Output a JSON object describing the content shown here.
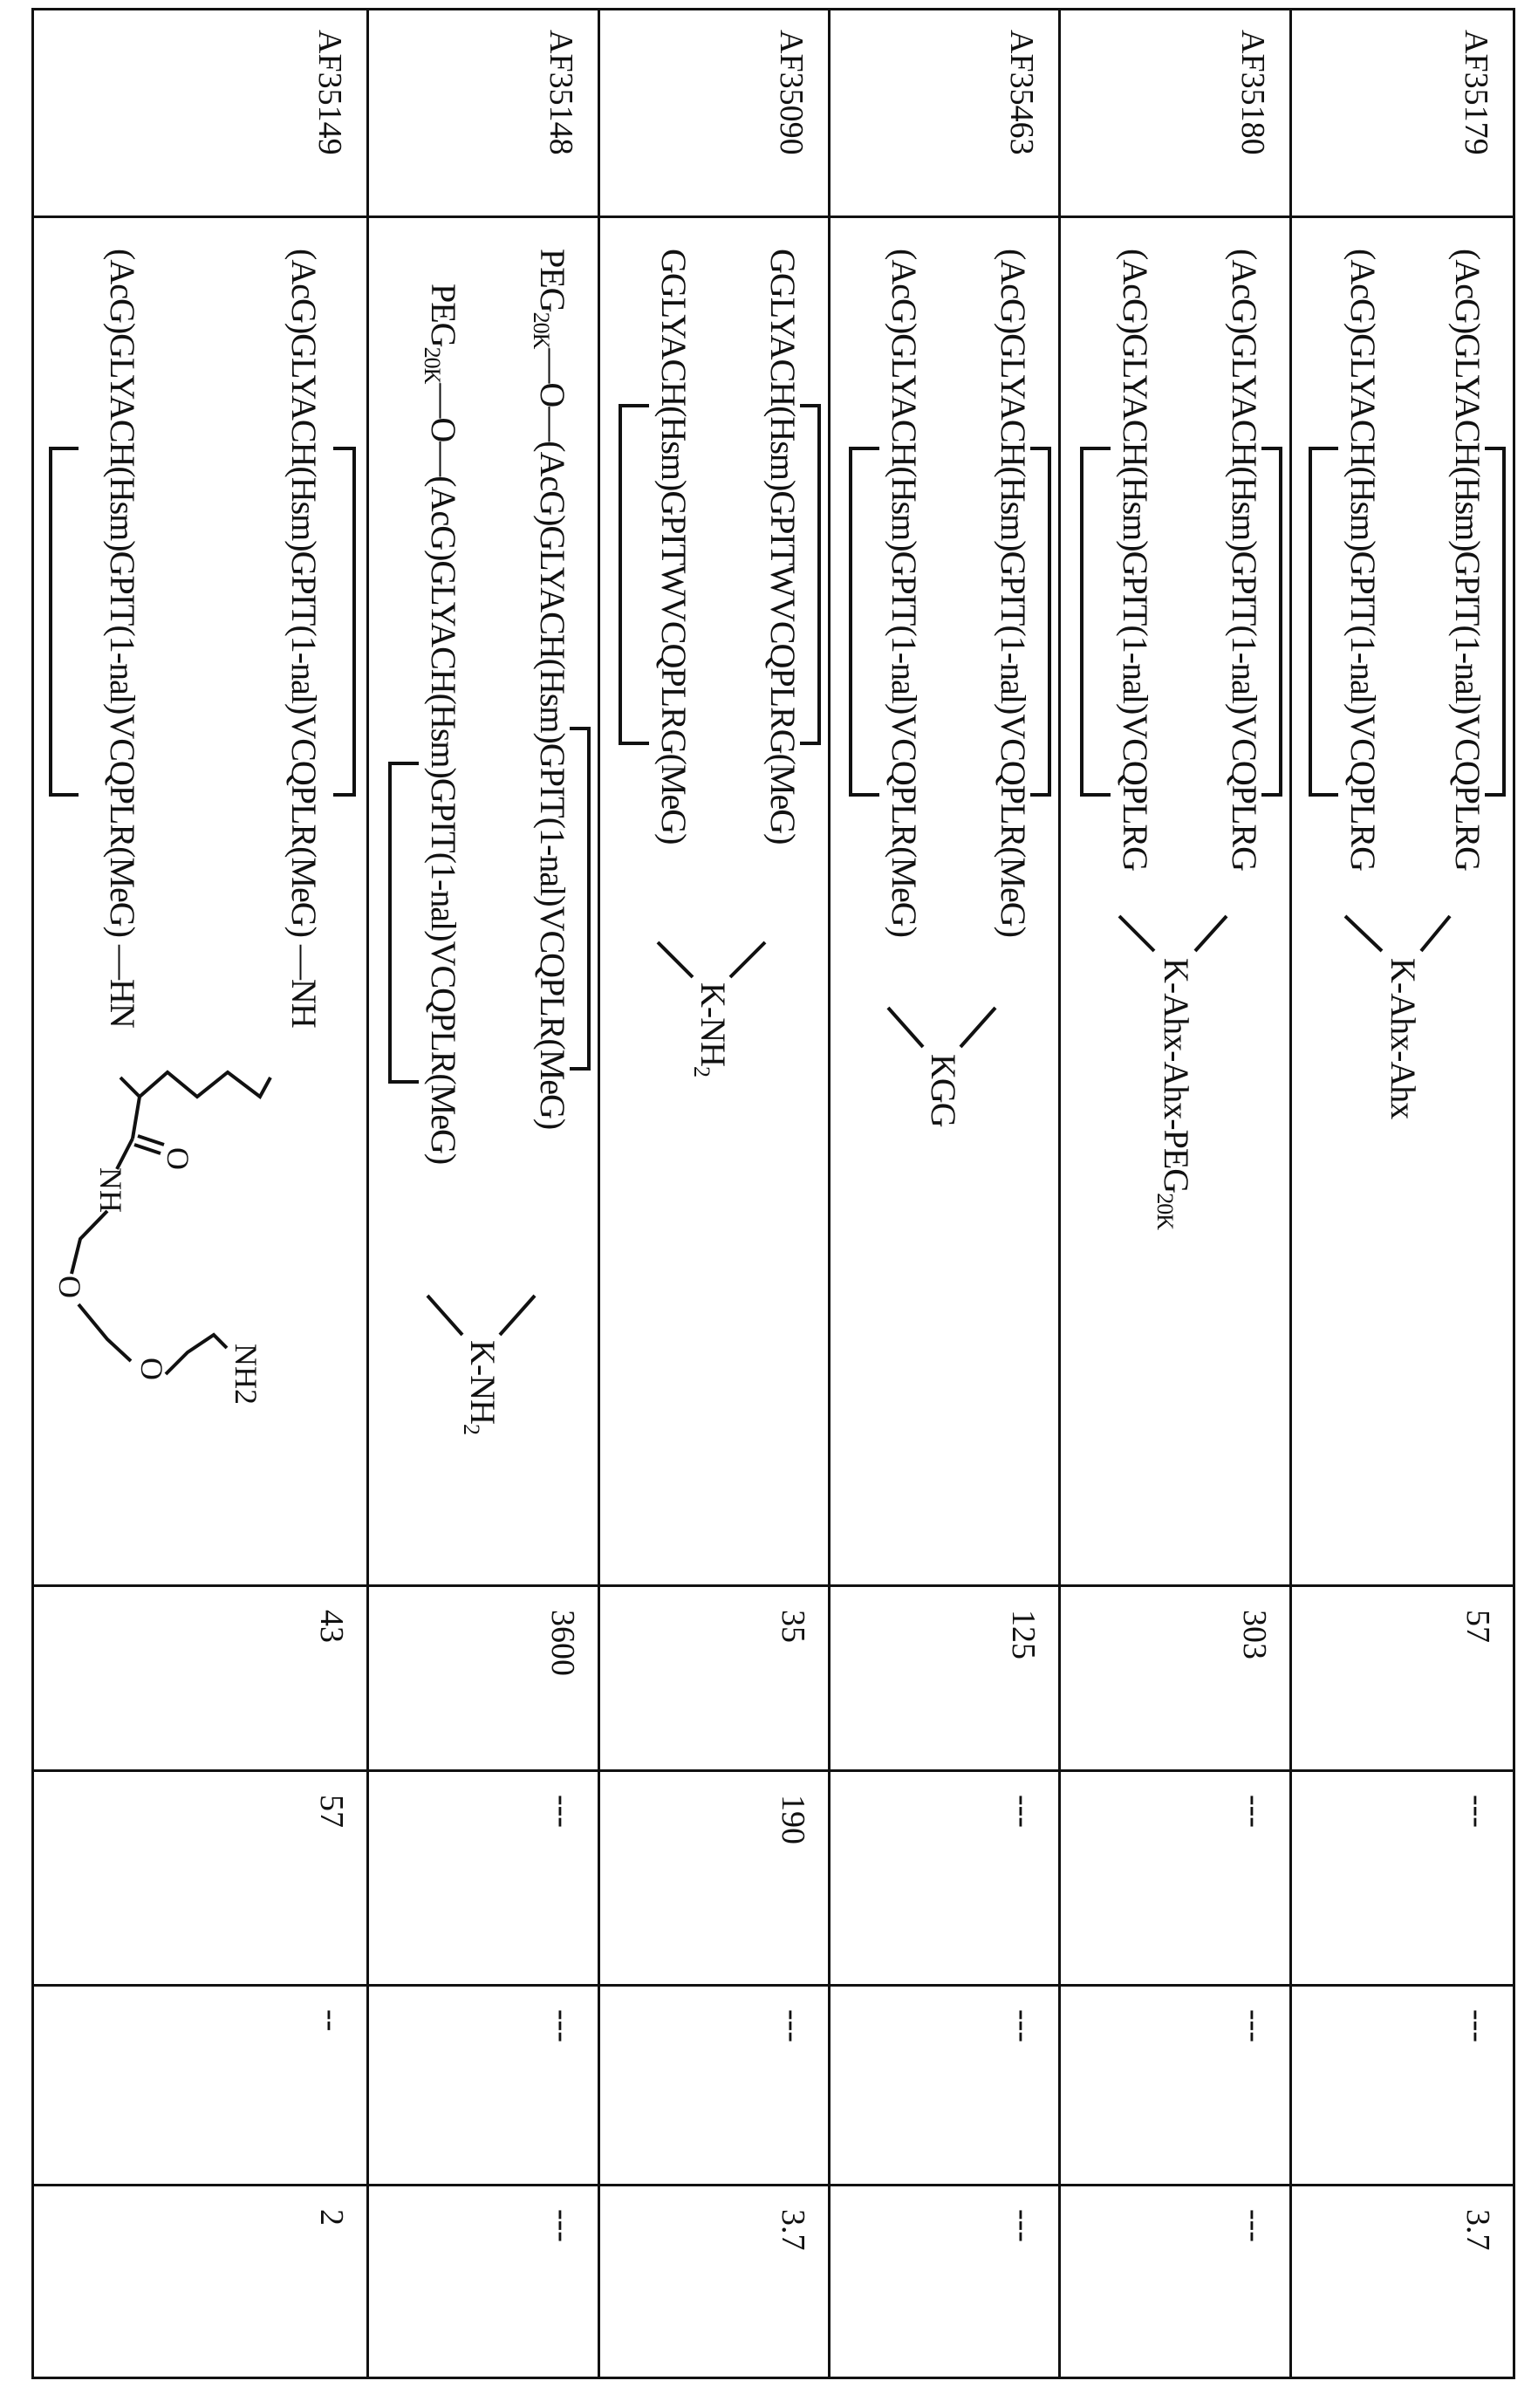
{
  "table": {
    "rows": [
      {
        "id": "AF35179",
        "line1": "(AcG)GLYACH(Hsm)GPIT(1-nal)VCQPLRG",
        "line2": "(AcG)GLYACH(Hsm)GPIT(1-nal)VCQPLRG",
        "linker": "K-Ahx-Ahx",
        "values": [
          "57",
          "---",
          "---",
          "3.7"
        ]
      },
      {
        "id": "AF35180",
        "line1": "(AcG)GLYACH(Hsm)GPIT(1-nal)VCQPLRG",
        "line2": "(AcG)GLYACH(Hsm)GPIT(1-nal)VCQPLRG",
        "linker": "K-Ahx-Ahx-PEG",
        "linker_sub": "20K",
        "values": [
          "303",
          "---",
          "---",
          "---"
        ]
      },
      {
        "id": "AF35463",
        "line1": "(AcG)GLYACH(Hsm)GPIT(1-nal)VCQPLR(MeG)",
        "line2": "(AcG)GLYACH(Hsm)GPIT(1-nal)VCQPLR(MeG)",
        "linker": "KGG",
        "values": [
          "125",
          "---",
          "---",
          "---"
        ]
      },
      {
        "id": "AF35090",
        "line1": "GGLYACH(Hsm)GPITWVCQPLRG(MeG)",
        "line2": "GGLYACH(Hsm)GPITWVCQPLRG(MeG)",
        "linker": "K-NH",
        "linker_sub": "2",
        "values": [
          "35",
          "190",
          "---",
          "3.7"
        ]
      },
      {
        "id": "AF35148",
        "prefix": "PEG",
        "prefix_sub": "20K",
        "prefix_link": "—O—",
        "line1": "(AcG)GLYACH(Hsm)GPIT(1-nal)VCQPLR(MeG)",
        "line2": "(AcG)GLYACH(Hsm)GPIT(1-nal)VCQPLR(MeG)",
        "linker": "K-NH",
        "linker_sub": "2",
        "values": [
          "3600",
          "---",
          "---",
          "---"
        ]
      },
      {
        "id": "AF35149",
        "line1": "(AcG)GLYACH(Hsm)GPIT(1-nal)VCQPLR(MeG)",
        "line1_end": "—NH",
        "line2": "(AcG)GLYACH(Hsm)GPIT(1-nal)VCQPLR(MeG)",
        "line2_end": "—HN",
        "chem_labels": {
          "o_carbonyl": "O",
          "amide": "NH",
          "ether1": "O",
          "ether2": "O",
          "amine": "NH2"
        },
        "values": [
          "43",
          "57",
          "--",
          "2"
        ]
      }
    ]
  }
}
